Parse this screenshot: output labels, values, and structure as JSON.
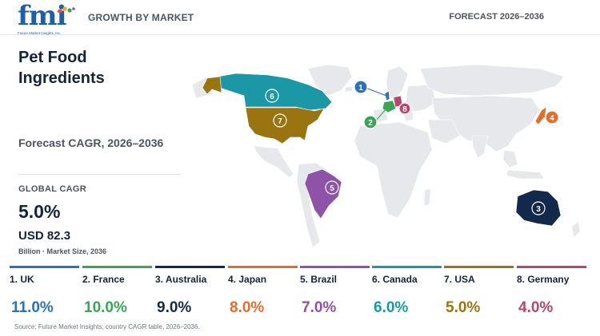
{
  "header": {
    "logo_text": "fmi",
    "logo_tagline": "Future Market Insights, Inc.",
    "left_label": "GROWTH BY MARKET",
    "right_label": "FORECAST 2026–2036"
  },
  "title": "Pet Food Ingredients",
  "subtitle": "Forecast CAGR, 2026–2036",
  "global": {
    "label": "GLOBAL CAGR",
    "value": "5.0%",
    "market_size": "USD 82.3",
    "market_size_note": "Billion · Market Size, 2036"
  },
  "countries": [
    {
      "rank": "1",
      "name": "1. UK",
      "cagr": "11.0%",
      "color": "#2b73b6"
    },
    {
      "rank": "2",
      "name": "2. France",
      "cagr": "10.0%",
      "color": "#3aa655"
    },
    {
      "rank": "3",
      "name": "3. Australia",
      "cagr": "9.0%",
      "color": "#13294b"
    },
    {
      "rank": "4",
      "name": "4. Japan",
      "cagr": "8.0%",
      "color": "#e06e2c"
    },
    {
      "rank": "5",
      "name": "5. Brazil",
      "cagr": "7.0%",
      "color": "#8e52a8"
    },
    {
      "rank": "6",
      "name": "6. Canada",
      "cagr": "6.0%",
      "color": "#1c97a6"
    },
    {
      "rank": "7",
      "name": "7. USA",
      "cagr": "5.0%",
      "color": "#9a7410"
    },
    {
      "rank": "8",
      "name": "8. Germany",
      "cagr": "4.0%",
      "color": "#b5476b"
    }
  ],
  "source": "Source: Future Market Insights; country CAGR table, 2026–2036."
}
